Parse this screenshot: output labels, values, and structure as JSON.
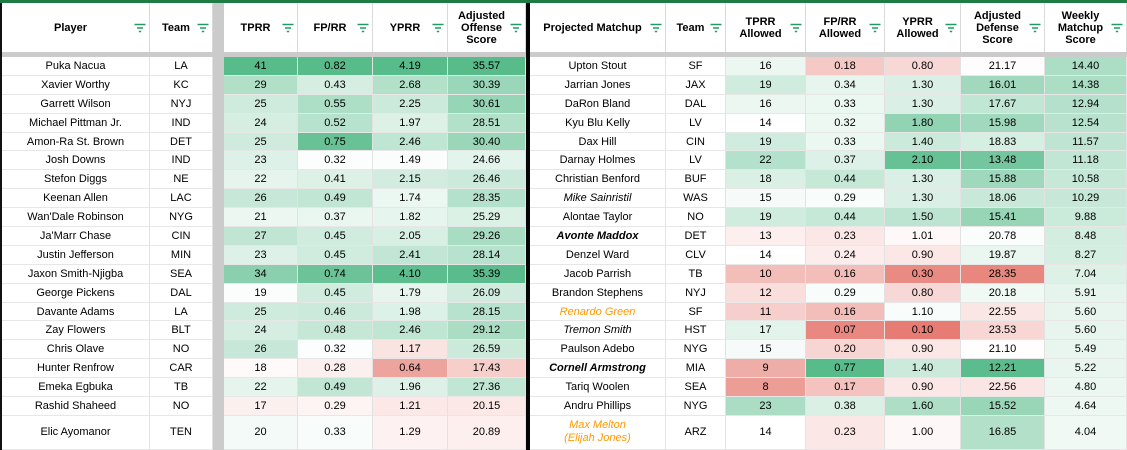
{
  "colors": {
    "scale_green": "#57bb8a",
    "scale_white": "#ffffff",
    "scale_red": "#e67c73",
    "filter_icon": "#1e9c62",
    "top_border": "#1d7c44",
    "gutter": "#cbcbcb",
    "divider": "#050505",
    "orange_text": "#ff9900"
  },
  "left_table": {
    "headers": [
      "Player",
      "Team",
      "TPRR",
      "FP/RR",
      "YPRR",
      "Adjusted Offense Score"
    ],
    "scales": {
      "tprr": {
        "red": 5,
        "white": 18.5,
        "green": 41
      },
      "fprr": {
        "red": 0.05,
        "white": 0.31,
        "green": 0.8
      },
      "yprr": {
        "red": 0.3,
        "white": 1.4,
        "green": 4.19
      },
      "score": {
        "red": 9,
        "white": 22.5,
        "green": 35.6
      }
    },
    "rows": [
      {
        "player": "Puka Nacua",
        "team": "LA",
        "tprr": "41",
        "fprr": "0.82",
        "yprr": "4.19",
        "score": "35.57"
      },
      {
        "player": "Xavier Worthy",
        "team": "KC",
        "tprr": "29",
        "fprr": "0.43",
        "yprr": "2.68",
        "score": "30.39"
      },
      {
        "player": "Garrett Wilson",
        "team": "NYJ",
        "tprr": "25",
        "fprr": "0.55",
        "yprr": "2.25",
        "score": "30.61"
      },
      {
        "player": "Michael Pittman Jr.",
        "team": "IND",
        "tprr": "24",
        "fprr": "0.52",
        "yprr": "1.97",
        "score": "28.51"
      },
      {
        "player": "Amon-Ra St. Brown",
        "team": "DET",
        "tprr": "25",
        "fprr": "0.75",
        "yprr": "2.46",
        "score": "30.40"
      },
      {
        "player": "Josh Downs",
        "team": "IND",
        "tprr": "23",
        "fprr": "0.32",
        "yprr": "1.49",
        "score": "24.66"
      },
      {
        "player": "Stefon Diggs",
        "team": "NE",
        "tprr": "22",
        "fprr": "0.41",
        "yprr": "2.15",
        "score": "26.46"
      },
      {
        "player": "Keenan Allen",
        "team": "LAC",
        "tprr": "26",
        "fprr": "0.49",
        "yprr": "1.74",
        "score": "28.35"
      },
      {
        "player": "Wan'Dale Robinson",
        "team": "NYG",
        "tprr": "21",
        "fprr": "0.37",
        "yprr": "1.82",
        "score": "25.29"
      },
      {
        "player": "Ja'Marr Chase",
        "team": "CIN",
        "tprr": "27",
        "fprr": "0.45",
        "yprr": "2.05",
        "score": "29.26"
      },
      {
        "player": "Justin Jefferson",
        "team": "MIN",
        "tprr": "23",
        "fprr": "0.45",
        "yprr": "2.41",
        "score": "28.14"
      },
      {
        "player": "Jaxon Smith-Njigba",
        "team": "SEA",
        "tprr": "34",
        "fprr": "0.74",
        "yprr": "4.10",
        "score": "35.39"
      },
      {
        "player": "George Pickens",
        "team": "DAL",
        "tprr": "19",
        "fprr": "0.45",
        "yprr": "1.79",
        "score": "26.09"
      },
      {
        "player": "Davante Adams",
        "team": "LA",
        "tprr": "25",
        "fprr": "0.46",
        "yprr": "1.98",
        "score": "28.15"
      },
      {
        "player": "Zay Flowers",
        "team": "BLT",
        "tprr": "24",
        "fprr": "0.48",
        "yprr": "2.46",
        "score": "29.12"
      },
      {
        "player": "Chris Olave",
        "team": "NO",
        "tprr": "26",
        "fprr": "0.32",
        "yprr": "1.17",
        "score": "26.59"
      },
      {
        "player": "Hunter Renfrow",
        "team": "CAR",
        "tprr": "18",
        "fprr": "0.28",
        "yprr": "0.64",
        "score": "17.43"
      },
      {
        "player": "Emeka Egbuka",
        "team": "TB",
        "tprr": "22",
        "fprr": "0.49",
        "yprr": "1.96",
        "score": "27.36"
      },
      {
        "player": "Rashid Shaheed",
        "team": "NO",
        "tprr": "17",
        "fprr": "0.29",
        "yprr": "1.21",
        "score": "20.15"
      },
      {
        "player": "Elic Ayomanor",
        "team": "TEN",
        "tprr": "20",
        "fprr": "0.33",
        "yprr": "1.29",
        "score": "20.89"
      }
    ]
  },
  "right_table": {
    "headers": [
      "Projected Matchup",
      "Team",
      "TPRR Allowed",
      "FP/RR Allowed",
      "YPRR Allowed",
      "Adjusted Defense Score",
      "Weekly Matchup Score"
    ],
    "scales": {
      "tprr": {
        "red": 6,
        "white": 14,
        "green": 32
      },
      "fprr": {
        "red": 0.05,
        "white": 0.27,
        "green": 0.77
      },
      "yprr": {
        "red": 0.2,
        "white": 1.05,
        "green": 2.2
      },
      "def": {
        "red": 29,
        "white": 21,
        "green": 12
      },
      "weekly": {
        "red": -23,
        "white": 2,
        "green": 27
      }
    },
    "rows": [
      {
        "matchup": "Upton Stout",
        "style": "",
        "line2": "",
        "team": "SF",
        "tprr": "16",
        "fprr": "0.18",
        "yprr": "0.80",
        "def": "21.17",
        "weekly": "14.40"
      },
      {
        "matchup": "Jarrian Jones",
        "style": "",
        "line2": "",
        "team": "JAX",
        "tprr": "19",
        "fprr": "0.34",
        "yprr": "1.30",
        "def": "16.01",
        "weekly": "14.38"
      },
      {
        "matchup": "DaRon Bland",
        "style": "",
        "line2": "",
        "team": "DAL",
        "tprr": "16",
        "fprr": "0.33",
        "yprr": "1.30",
        "def": "17.67",
        "weekly": "12.94"
      },
      {
        "matchup": "Kyu Blu Kelly",
        "style": "",
        "line2": "",
        "team": "LV",
        "tprr": "14",
        "fprr": "0.32",
        "yprr": "1.80",
        "def": "15.98",
        "weekly": "12.54"
      },
      {
        "matchup": "Dax Hill",
        "style": "",
        "line2": "",
        "team": "CIN",
        "tprr": "19",
        "fprr": "0.33",
        "yprr": "1.40",
        "def": "18.83",
        "weekly": "11.57"
      },
      {
        "matchup": "Darnay Holmes",
        "style": "",
        "line2": "",
        "team": "LV",
        "tprr": "22",
        "fprr": "0.37",
        "yprr": "2.10",
        "def": "13.48",
        "weekly": "11.18"
      },
      {
        "matchup": "Christian Benford",
        "style": "",
        "line2": "",
        "team": "BUF",
        "tprr": "18",
        "fprr": "0.44",
        "yprr": "1.30",
        "def": "15.88",
        "weekly": "10.58"
      },
      {
        "matchup": "Mike Sainristil",
        "style": "i",
        "line2": "",
        "team": "WAS",
        "tprr": "15",
        "fprr": "0.29",
        "yprr": "1.30",
        "def": "18.06",
        "weekly": "10.29"
      },
      {
        "matchup": "Alontae Taylor",
        "style": "",
        "line2": "",
        "team": "NO",
        "tprr": "19",
        "fprr": "0.44",
        "yprr": "1.50",
        "def": "15.41",
        "weekly": "9.88"
      },
      {
        "matchup": "Avonte Maddox",
        "style": "bi",
        "line2": "",
        "team": "DET",
        "tprr": "13",
        "fprr": "0.23",
        "yprr": "1.01",
        "def": "20.78",
        "weekly": "8.48"
      },
      {
        "matchup": "Denzel Ward",
        "style": "",
        "line2": "",
        "team": "CLV",
        "tprr": "14",
        "fprr": "0.24",
        "yprr": "0.90",
        "def": "19.87",
        "weekly": "8.27"
      },
      {
        "matchup": "Jacob Parrish",
        "style": "",
        "line2": "",
        "team": "TB",
        "tprr": "10",
        "fprr": "0.16",
        "yprr": "0.30",
        "def": "28.35",
        "weekly": "7.04"
      },
      {
        "matchup": "Brandon Stephens",
        "style": "",
        "line2": "",
        "team": "NYJ",
        "tprr": "12",
        "fprr": "0.29",
        "yprr": "0.80",
        "def": "20.18",
        "weekly": "5.91"
      },
      {
        "matchup": "Renardo Green",
        "style": "oi",
        "line2": "",
        "team": "SF",
        "tprr": "11",
        "fprr": "0.16",
        "yprr": "1.10",
        "def": "22.55",
        "weekly": "5.60"
      },
      {
        "matchup": "Tremon Smith",
        "style": "i",
        "line2": "",
        "team": "HST",
        "tprr": "17",
        "fprr": "0.07",
        "yprr": "0.10",
        "def": "23.53",
        "weekly": "5.60"
      },
      {
        "matchup": "Paulson Adebo",
        "style": "",
        "line2": "",
        "team": "NYG",
        "tprr": "15",
        "fprr": "0.20",
        "yprr": "0.90",
        "def": "21.10",
        "weekly": "5.49"
      },
      {
        "matchup": "Cornell Armstrong",
        "style": "bi",
        "line2": "",
        "team": "MIA",
        "tprr": "9",
        "fprr": "0.77",
        "yprr": "1.40",
        "def": "12.21",
        "weekly": "5.22"
      },
      {
        "matchup": "Tariq Woolen",
        "style": "",
        "line2": "",
        "team": "SEA",
        "tprr": "8",
        "fprr": "0.17",
        "yprr": "0.90",
        "def": "22.56",
        "weekly": "4.80"
      },
      {
        "matchup": "Andru Phillips",
        "style": "",
        "line2": "",
        "team": "NYG",
        "tprr": "23",
        "fprr": "0.38",
        "yprr": "1.60",
        "def": "15.52",
        "weekly": "4.64"
      },
      {
        "matchup": "Max Melton",
        "style": "oi",
        "line2": "(Elijah Jones)",
        "team": "ARZ",
        "tprr": "14",
        "fprr": "0.23",
        "yprr": "1.00",
        "def": "16.85",
        "weekly": "4.04"
      }
    ]
  }
}
